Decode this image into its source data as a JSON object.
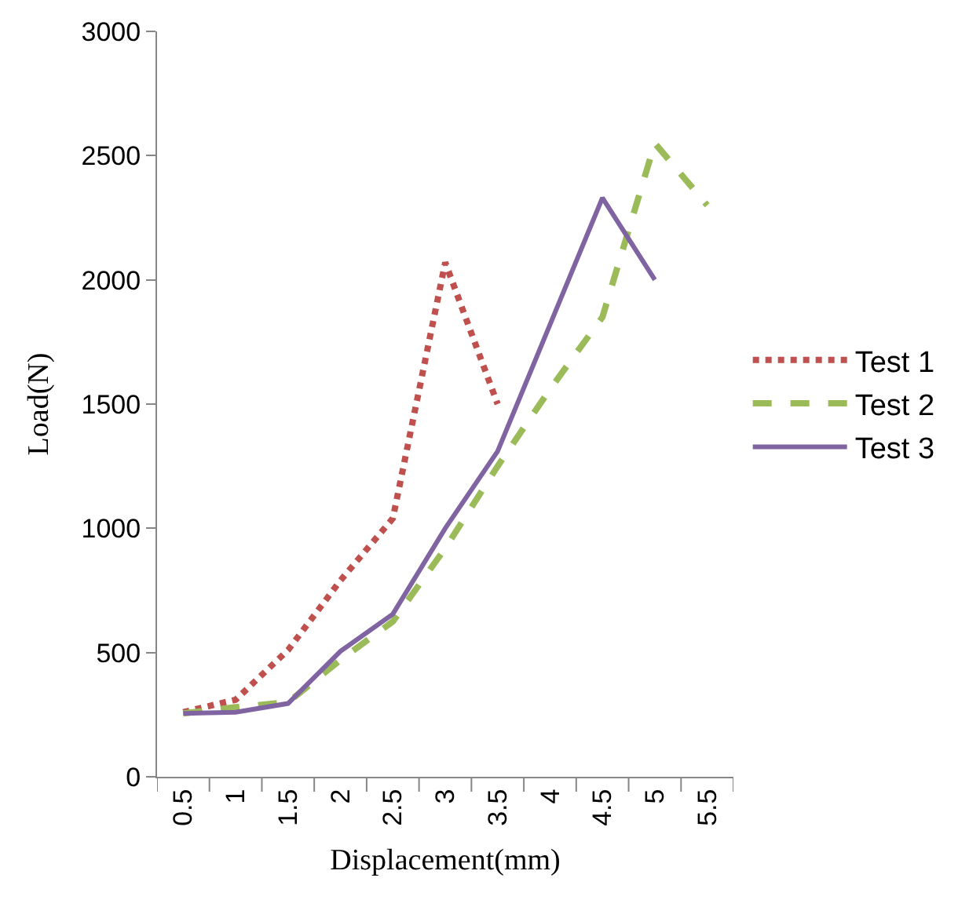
{
  "chart_data": {
    "type": "line",
    "xlabel": "Displacement(mm)",
    "ylabel": "Load(N)",
    "categories": [
      "0.5",
      "1",
      "1.5",
      "2",
      "2.5",
      "3",
      "3.5",
      "4",
      "4.5",
      "5",
      "5.5"
    ],
    "series": [
      {
        "name": "Test 1",
        "color": "#c0504d",
        "line_style": "dotted",
        "values": [
          260,
          310,
          510,
          790,
          1040,
          2070,
          1500,
          null,
          null,
          null,
          null
        ]
      },
      {
        "name": "Test 2",
        "color": "#9bbb59",
        "line_style": "dashed",
        "values": [
          255,
          280,
          300,
          470,
          625,
          920,
          1250,
          1560,
          1850,
          2550,
          2300
        ]
      },
      {
        "name": "Test 3",
        "color": "#8064a2",
        "line_style": "solid",
        "values": [
          255,
          260,
          295,
          505,
          655,
          1000,
          1310,
          1820,
          2330,
          2000,
          null
        ]
      }
    ],
    "ylim": [
      0,
      3000
    ],
    "yticks": [
      0,
      500,
      1000,
      1500,
      2000,
      2500,
      3000
    ],
    "legend": "right",
    "marker": "none"
  }
}
